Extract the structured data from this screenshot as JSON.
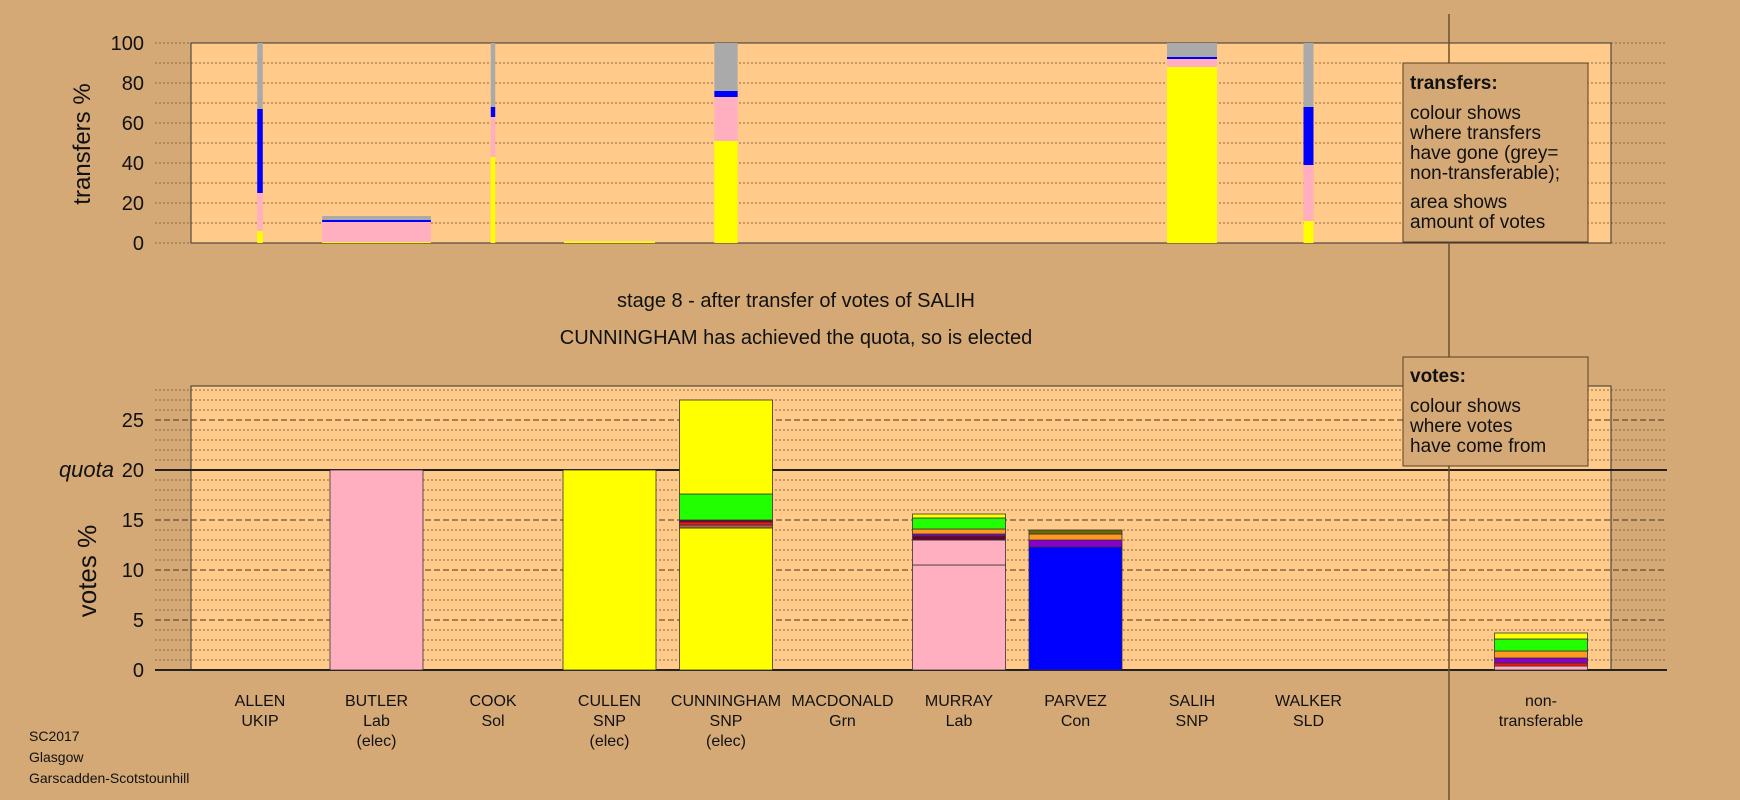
{
  "colors": {
    "background": "#d4a976",
    "plot": "#ffca8a",
    "yellow": "#ffff00",
    "pink": "#ffafc0",
    "blue": "#0000ff",
    "grey": "#aaaaaa",
    "green": "#22ff00",
    "orange": "#ff9922",
    "purple": "#8800cc",
    "red": "#ff1010",
    "darkred": "#660033",
    "olive": "#6a6a00",
    "brown": "#aa6644"
  },
  "title": {
    "line1": "stage 8 - after transfer of votes of SALIH",
    "line2": "CUNNINGHAM has achieved the quota, so is elected"
  },
  "footer": {
    "election": "SC2017",
    "council": "Glasgow",
    "ward": "Garscadden-Scotstounhill"
  },
  "chart_data": [
    {
      "type": "bar",
      "title": "transfers",
      "ylabel": "transfers %",
      "ylim": [
        0,
        100
      ],
      "yticks": [
        "0",
        "20",
        "40",
        "60",
        "80",
        "100"
      ],
      "legend": {
        "heading": "transfers:",
        "lines1": [
          "colour shows",
          "where transfers",
          "have gone (grey=",
          "non-transferable);"
        ],
        "lines2": [
          "area shows",
          "amount of votes"
        ],
        "placement": "top-right"
      },
      "series": [
        {
          "name": "ALLEN",
          "amount": 5,
          "segments": [
            {
              "c": "yellow",
              "v": 6
            },
            {
              "c": "pink",
              "v": 19
            },
            {
              "c": "blue",
              "v": 42
            },
            {
              "c": "grey",
              "v": 33
            }
          ]
        },
        {
          "name": "BUTLER",
          "amount": 98,
          "segments": [
            {
              "c": "yellow",
              "v": 0.5
            },
            {
              "c": "pink",
              "v": 10
            },
            {
              "c": "blue",
              "v": 1
            },
            {
              "c": "grey",
              "v": 2
            }
          ]
        },
        {
          "name": "COOK",
          "amount": 4,
          "segments": [
            {
              "c": "yellow",
              "v": 43
            },
            {
              "c": "pink",
              "v": 20
            },
            {
              "c": "blue",
              "v": 5
            },
            {
              "c": "grey",
              "v": 32
            }
          ]
        },
        {
          "name": "CULLEN",
          "amount": 82,
          "segments": [
            {
              "c": "yellow",
              "v": 0.8
            }
          ]
        },
        {
          "name": "CUNNINGHAM",
          "amount": 21,
          "segments": [
            {
              "c": "yellow",
              "v": 51
            },
            {
              "c": "pink",
              "v": 22
            },
            {
              "c": "blue",
              "v": 3
            },
            {
              "c": "grey",
              "v": 24
            }
          ]
        },
        {
          "name": "MACDONALD",
          "amount": 0,
          "segments": []
        },
        {
          "name": "MURRAY",
          "amount": 0,
          "segments": []
        },
        {
          "name": "PARVEZ",
          "amount": 0,
          "segments": []
        },
        {
          "name": "SALIH",
          "amount": 45,
          "segments": [
            {
              "c": "yellow",
              "v": 88
            },
            {
              "c": "pink",
              "v": 4
            },
            {
              "c": "blue",
              "v": 1
            },
            {
              "c": "grey",
              "v": 7
            }
          ]
        },
        {
          "name": "WALKER",
          "amount": 9,
          "segments": [
            {
              "c": "yellow",
              "v": 11
            },
            {
              "c": "pink",
              "v": 28
            },
            {
              "c": "blue",
              "v": 29
            },
            {
              "c": "grey",
              "v": 32
            }
          ]
        }
      ]
    },
    {
      "type": "bar",
      "title": "votes",
      "ylabel": "votes %",
      "ylim": [
        0,
        28.5
      ],
      "quota": 20,
      "quota_label": "quota",
      "yticks": [
        "0",
        "5",
        "10",
        "15",
        "20",
        "25"
      ],
      "legend": {
        "heading": "votes:",
        "lines": [
          "colour shows",
          "where votes",
          "have come from"
        ],
        "placement": "top-right"
      },
      "categories": [
        {
          "name": "ALLEN",
          "lines": [
            "ALLEN",
            "UKIP"
          ],
          "segments": []
        },
        {
          "name": "BUTLER",
          "lines": [
            "BUTLER",
            "Lab",
            "(elec)"
          ],
          "segments": [
            {
              "c": "pink",
              "v": 20
            }
          ]
        },
        {
          "name": "COOK",
          "lines": [
            "COOK",
            "Sol"
          ],
          "segments": []
        },
        {
          "name": "CULLEN",
          "lines": [
            "CULLEN",
            "SNP",
            "(elec)"
          ],
          "segments": [
            {
              "c": "yellow",
              "v": 20
            }
          ]
        },
        {
          "name": "CUNNINGHAM",
          "lines": [
            "CUNNINGHAM",
            "SNP",
            "(elec)"
          ],
          "segments": [
            {
              "c": "yellow",
              "v": 14.2
            },
            {
              "c": "brown",
              "v": 0.3
            },
            {
              "c": "red",
              "v": 0.3
            },
            {
              "c": "darkred",
              "v": 0.2
            },
            {
              "c": "green",
              "v": 2.6
            },
            {
              "c": "yellow",
              "v": 9.4
            }
          ]
        },
        {
          "name": "MACDONALD",
          "lines": [
            "MACDONALD",
            "Grn"
          ],
          "segments": []
        },
        {
          "name": "MURRAY",
          "lines": [
            "MURRAY",
            "Lab"
          ],
          "segments": [
            {
              "c": "pink",
              "v": 10.5
            },
            {
              "c": "pink",
              "v": 2.5
            },
            {
              "c": "darkred",
              "v": 0.4
            },
            {
              "c": "purple",
              "v": 0.2
            },
            {
              "c": "orange",
              "v": 0.5
            },
            {
              "c": "green",
              "v": 1.1
            },
            {
              "c": "yellow",
              "v": 0.4
            }
          ]
        },
        {
          "name": "PARVEZ",
          "lines": [
            "PARVEZ",
            "Con"
          ],
          "segments": [
            {
              "c": "blue",
              "v": 12.3
            },
            {
              "c": "purple",
              "v": 0.7
            },
            {
              "c": "orange",
              "v": 0.6
            },
            {
              "c": "olive",
              "v": 0.4
            }
          ]
        },
        {
          "name": "SALIH",
          "lines": [
            "SALIH",
            "SNP"
          ],
          "segments": []
        },
        {
          "name": "WALKER",
          "lines": [
            "WALKER",
            "SLD"
          ],
          "segments": []
        },
        {
          "name": "non-transferable",
          "lines": [
            "non-",
            "transferable"
          ],
          "segments": [
            {
              "c": "pink",
              "v": 0.4
            },
            {
              "c": "red",
              "v": 0.3
            },
            {
              "c": "purple",
              "v": 0.5
            },
            {
              "c": "orange",
              "v": 0.7
            },
            {
              "c": "green",
              "v": 1.2
            },
            {
              "c": "yellow",
              "v": 0.6
            }
          ]
        }
      ]
    }
  ]
}
